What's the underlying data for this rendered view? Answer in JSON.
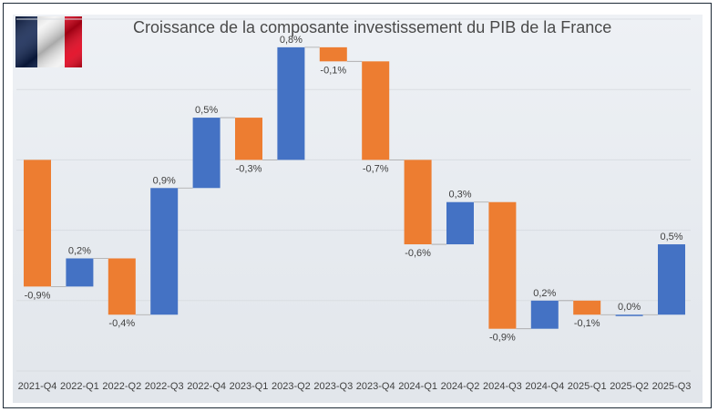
{
  "chart_data": {
    "type": "bar",
    "subtype": "waterfall",
    "title": "Croissance de la composante investissement du PIB de la France",
    "categories": [
      "2021-Q4",
      "2022-Q1",
      "2022-Q2",
      "2022-Q3",
      "2022-Q4",
      "2023-Q1",
      "2023-Q2",
      "2023-Q3",
      "2023-Q4",
      "2024-Q1",
      "2024-Q2",
      "2024-Q3",
      "2024-Q4",
      "2025-Q1",
      "2025-Q2",
      "2025-Q3"
    ],
    "values": [
      -0.9,
      0.2,
      -0.4,
      0.9,
      0.5,
      -0.3,
      0.8,
      -0.1,
      -0.7,
      -0.6,
      0.3,
      -0.9,
      0.2,
      -0.1,
      0.0,
      0.5
    ],
    "data_labels": [
      "-0,9%",
      "0,2%",
      "-0,4%",
      "0,9%",
      "0,5%",
      "-0,3%",
      "0,8%",
      "-0,1%",
      "-0,7%",
      "-0,6%",
      "0,3%",
      "-0,9%",
      "0,2%",
      "-0,1%",
      "0,0%",
      "0,5%"
    ],
    "unit": "%",
    "ylim": [
      -1.5,
      1.0
    ],
    "grid_step": 0.5,
    "grid": true,
    "y_axis_labels_shown": false,
    "legend": "none",
    "colors": {
      "increase": "#4472c4",
      "decrease": "#ed7d31",
      "connector": "#a6a6a6",
      "grid": "#d9dde2"
    }
  },
  "logo": {
    "name": "french-flag",
    "colors": [
      "#0b1f4d",
      "#f2f2f2",
      "#e1001a"
    ]
  }
}
